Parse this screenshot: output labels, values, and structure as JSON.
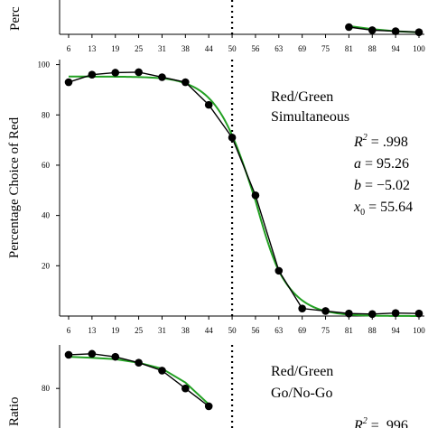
{
  "chart_data": [
    {
      "type": "line",
      "panel": "top",
      "ylabel_visible": "Perc",
      "x_ticks": [
        "6",
        "13",
        "19",
        "25",
        "31",
        "38",
        "44",
        "50",
        "56",
        "63",
        "69",
        "75",
        "81",
        "88",
        "94",
        "100"
      ],
      "x": [
        81,
        88,
        94,
        100
      ],
      "series": [
        {
          "role": "observed",
          "marker": "circle",
          "values": [
            7,
            4,
            3,
            2
          ]
        },
        {
          "role": "fit",
          "marker": "none",
          "values": [
            8,
            5,
            3,
            2
          ]
        }
      ],
      "ylim": [
        0,
        35
      ],
      "xlim": [
        3,
        102
      ],
      "reference_line_x": 50,
      "y_ticks": []
    },
    {
      "type": "line",
      "panel": "middle",
      "ylabel": "Percentage Choice of Red",
      "annotation": [
        "Red/Green",
        "Simultaneous"
      ],
      "stats": {
        "r2": ".998",
        "a": "95.26",
        "b": "−5.02",
        "x0": "55.64"
      },
      "x_ticks": [
        "6",
        "13",
        "19",
        "25",
        "31",
        "38",
        "44",
        "50",
        "56",
        "63",
        "69",
        "75",
        "81",
        "88",
        "94",
        "100"
      ],
      "y_ticks": [
        "20",
        "40",
        "60",
        "80",
        "100"
      ],
      "x": [
        6,
        13,
        19,
        25,
        31,
        38,
        44,
        50,
        56,
        63,
        69,
        75,
        81,
        88,
        94,
        100
      ],
      "series": [
        {
          "role": "observed",
          "marker": "circle",
          "values": [
            93,
            96,
            96.8,
            97,
            95,
            93,
            84,
            71,
            48,
            18,
            3,
            2,
            1,
            0.8,
            1.2,
            1
          ]
        },
        {
          "role": "fit",
          "marker": "none",
          "fit": {
            "a": 95.26,
            "b": -5.02,
            "x0": 55.64
          }
        }
      ],
      "ylim": [
        0,
        102
      ],
      "xlim": [
        3,
        102
      ],
      "reference_line_x": 50
    },
    {
      "type": "line",
      "panel": "bottom",
      "ylabel_visible": "Ratio",
      "annotation": [
        "Red/Green",
        "Go/No-Go"
      ],
      "stats": {
        "r2": ".996"
      },
      "x": [
        6,
        13,
        19,
        25,
        31,
        38,
        44
      ],
      "series": [
        {
          "role": "observed",
          "marker": "circle",
          "values": [
            97,
            97.5,
            96,
            93,
            89,
            80,
            71
          ]
        },
        {
          "role": "fit",
          "marker": "none",
          "values": [
            96,
            95.5,
            94.8,
            93,
            90,
            83,
            72
          ]
        }
      ],
      "y_ticks": [
        "80"
      ],
      "ylim": [
        60,
        102
      ],
      "xlim": [
        3,
        102
      ],
      "reference_line_x": 50
    }
  ],
  "colors": {
    "observed": "#000000",
    "fit": "#22a022",
    "axis": "#000000"
  }
}
